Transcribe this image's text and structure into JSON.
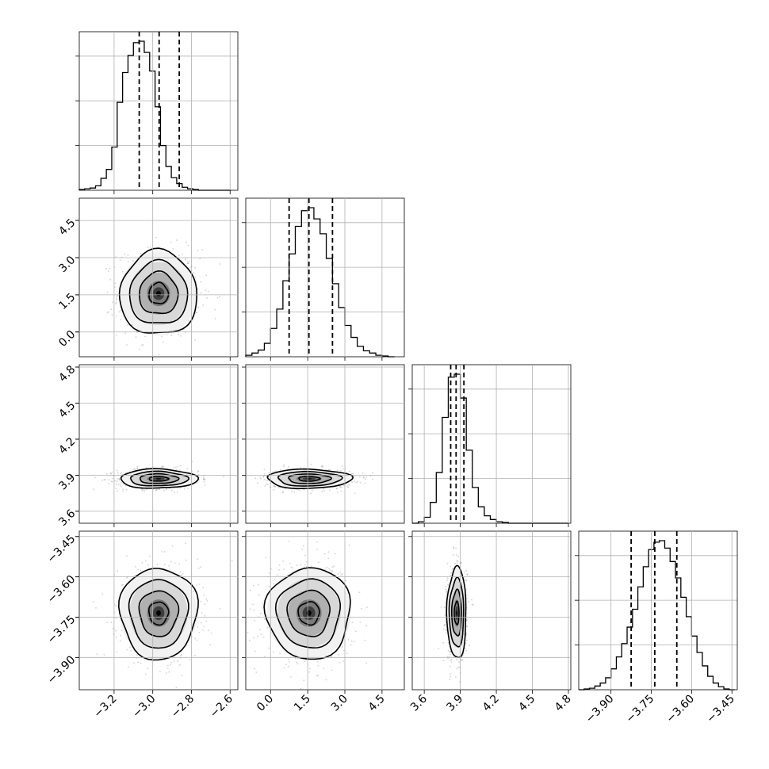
{
  "chart_data": {
    "type": "corner",
    "grid": true,
    "parameters": [
      {
        "id": "p0",
        "range": [
          -3.38,
          -2.56
        ],
        "ticks": [
          -3.2,
          -3.0,
          -2.8,
          -2.6
        ],
        "tick_labels": [
          "−3.2",
          "−3.0",
          "−2.8",
          "−2.6"
        ],
        "mean": -2.97,
        "sd": 0.1,
        "quantiles": [
          -3.07,
          -2.967,
          -2.863
        ],
        "histogram": {
          "edges": [
            -3.38,
            -3.352,
            -3.324,
            -3.296,
            -3.268,
            -3.24,
            -3.212,
            -3.184,
            -3.156,
            -3.128,
            -3.1,
            -3.072,
            -3.044,
            -3.016,
            -2.988,
            -2.96,
            -2.932,
            -2.904,
            -2.876,
            -2.848,
            -2.82,
            -2.792,
            -2.764,
            -2.736,
            -2.708,
            -2.68,
            -2.652,
            -2.624,
            -2.596
          ],
          "counts": [
            1,
            2,
            3,
            6,
            16,
            28,
            58,
            118,
            158,
            181,
            198,
            200,
            185,
            160,
            112,
            60,
            32,
            17,
            9,
            4,
            2,
            1,
            0,
            0,
            0,
            0,
            0,
            0
          ]
        }
      },
      {
        "id": "p1",
        "range": [
          -1.0,
          5.4
        ],
        "ticks": [
          0.0,
          1.5,
          3.0,
          4.5
        ],
        "tick_labels": [
          "0.0",
          "1.5",
          "3.0",
          "4.5"
        ],
        "mean": 1.55,
        "sd": 0.85,
        "quantiles": [
          0.75,
          1.55,
          2.5
        ],
        "histogram": {
          "edges": [
            -1.0,
            -0.75,
            -0.5,
            -0.25,
            0.0,
            0.25,
            0.5,
            0.75,
            1.0,
            1.25,
            1.5,
            1.75,
            2.0,
            2.25,
            2.5,
            2.75,
            3.0,
            3.25,
            3.5,
            3.75,
            4.0,
            4.25,
            4.5,
            4.75,
            5.0
          ],
          "counts": [
            2,
            5,
            9,
            18,
            38,
            64,
            102,
            138,
            175,
            196,
            200,
            185,
            165,
            132,
            98,
            66,
            42,
            26,
            14,
            8,
            5,
            2,
            1,
            0
          ]
        }
      },
      {
        "id": "p2",
        "range": [
          3.5,
          4.82
        ],
        "ticks": [
          3.6,
          3.9,
          4.2,
          4.5,
          4.8
        ],
        "tick_labels": [
          "3.6",
          "3.9",
          "4.2",
          "4.5",
          "4.8"
        ],
        "mean": 3.87,
        "sd": 0.04,
        "quantiles": [
          3.82,
          3.865,
          3.93
        ],
        "histogram": {
          "edges": [
            3.5,
            3.55,
            3.6,
            3.65,
            3.7,
            3.75,
            3.8,
            3.85,
            3.9,
            3.95,
            4.0,
            4.05,
            4.1,
            4.15,
            4.2,
            4.25,
            4.3,
            4.35,
            4.4,
            4.45,
            4.5,
            4.55,
            4.6,
            4.65,
            4.7,
            4.75,
            4.8
          ],
          "counts": [
            0,
            2,
            8,
            28,
            68,
            142,
            196,
            200,
            168,
            98,
            48,
            22,
            10,
            5,
            2,
            1,
            0,
            0,
            0,
            0,
            0,
            0,
            0,
            0,
            0,
            0
          ]
        }
      },
      {
        "id": "p3",
        "range": [
          -4.02,
          -3.43
        ],
        "ticks": [
          -3.9,
          -3.75,
          -3.6,
          -3.45
        ],
        "tick_labels": [
          "−3.90",
          "−3.75",
          "−3.60",
          "−3.45"
        ],
        "mean": -3.735,
        "sd": 0.085,
        "quantiles": [
          -3.825,
          -3.737,
          -3.655
        ],
        "histogram": {
          "edges": [
            -4.02,
            -4.0,
            -3.98,
            -3.96,
            -3.94,
            -3.92,
            -3.9,
            -3.88,
            -3.86,
            -3.84,
            -3.82,
            -3.8,
            -3.78,
            -3.76,
            -3.74,
            -3.72,
            -3.7,
            -3.68,
            -3.66,
            -3.64,
            -3.62,
            -3.6,
            -3.58,
            -3.56,
            -3.54,
            -3.52,
            -3.5,
            -3.48,
            -3.46,
            -3.44
          ],
          "counts": [
            0,
            1,
            2,
            5,
            9,
            16,
            28,
            44,
            62,
            84,
            108,
            138,
            165,
            188,
            198,
            200,
            190,
            172,
            150,
            124,
            98,
            72,
            50,
            32,
            18,
            9,
            4,
            1,
            0
          ]
        }
      }
    ],
    "pair_panels": [
      {
        "x": "p0",
        "y": "p1",
        "center": [
          -2.97,
          1.55
        ]
      },
      {
        "x": "p0",
        "y": "p2",
        "center": [
          -2.97,
          3.87
        ]
      },
      {
        "x": "p1",
        "y": "p2",
        "center": [
          1.55,
          3.87
        ]
      },
      {
        "x": "p0",
        "y": "p3",
        "center": [
          -2.97,
          -3.735
        ]
      },
      {
        "x": "p1",
        "y": "p3",
        "center": [
          1.55,
          -3.735
        ]
      },
      {
        "x": "p2",
        "y": "p3",
        "center": [
          3.87,
          -3.735
        ]
      }
    ],
    "contour_levels_sigma": [
      0.5,
      1.0,
      1.5,
      2.0
    ]
  }
}
